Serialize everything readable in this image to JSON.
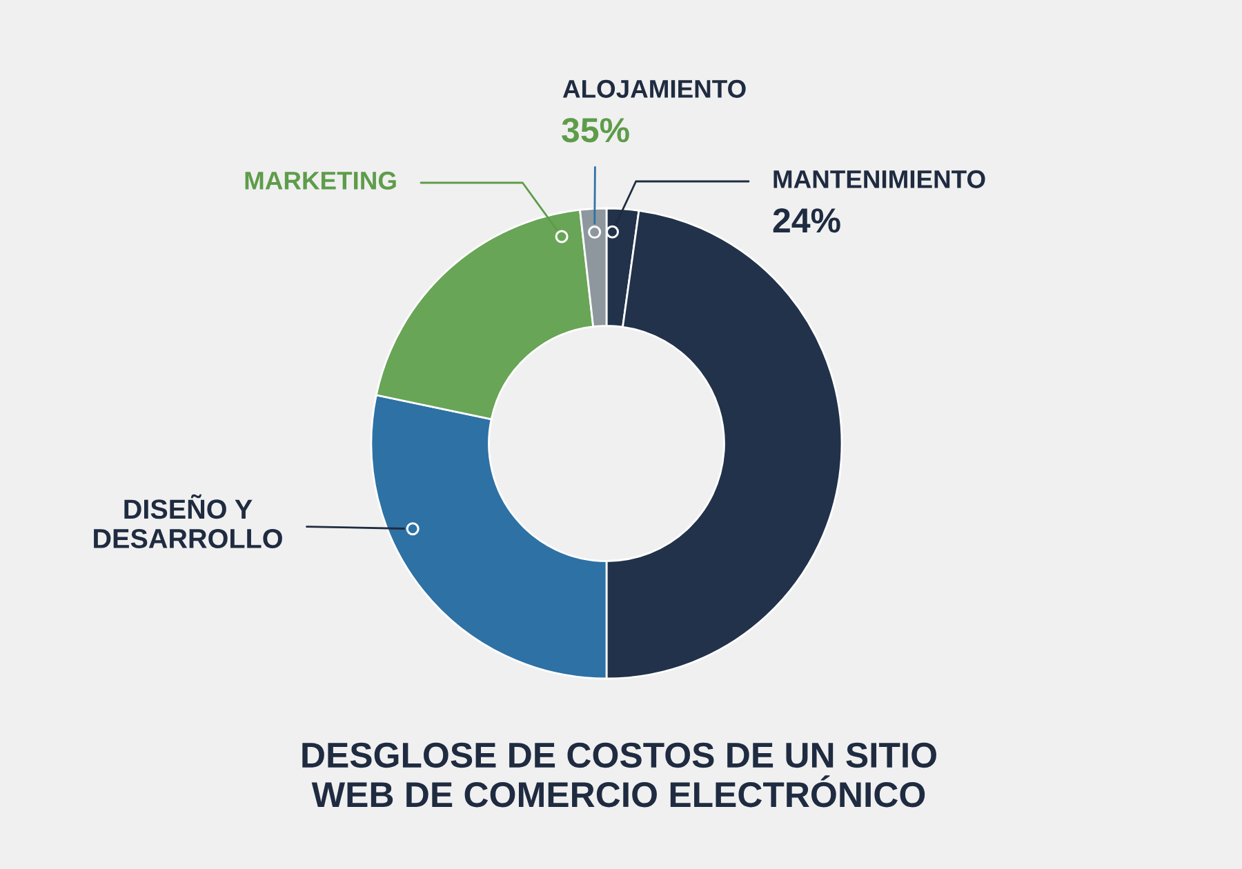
{
  "chart_data": {
    "type": "donut",
    "title": "DESGLOSE DE COSTOS DE UN SITIO\nWEB DE COMERCIO ELECTRÓNICO",
    "categories": [
      "MANTENIMIENTO",
      null,
      "DISEÑO Y\nDESARROLLO",
      "MARKETING",
      "ALOJAMIENTO"
    ],
    "values": [
      2.2,
      47.8,
      28.3,
      19.9,
      1.8
    ],
    "colors": [
      "#22324a",
      "#22324a",
      "#2e71a5",
      "#68a556",
      "#8e979e"
    ],
    "annotations": [
      "24%",
      "35%"
    ]
  }
}
